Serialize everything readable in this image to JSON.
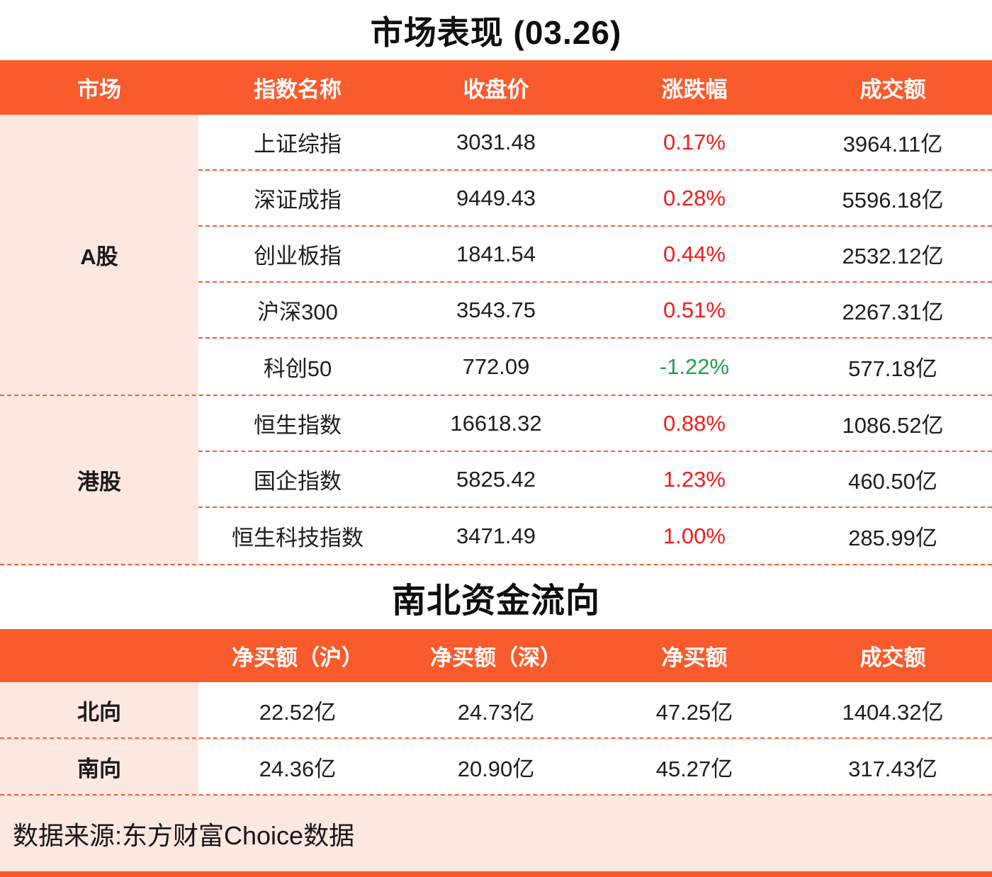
{
  "colors": {
    "accent": "#F95B2D",
    "pink": "#FDE8E1",
    "up": "#F21C1A",
    "down": "#1FA14A",
    "text": "#1E1E1E"
  },
  "footer": {
    "text": "数据来源:东方财富Choice数据"
  },
  "chart_data": [
    {
      "type": "table",
      "title": "市场表现 (03.26)",
      "columns": [
        "市场",
        "指数名称",
        "收盘价",
        "涨跌幅",
        "成交额"
      ],
      "row_groups": [
        {
          "market": "A股",
          "rows": [
            {
              "name": "上证综指",
              "close": "3031.48",
              "change": "0.17%",
              "change_dir": "up",
              "turnover": "3964.11亿"
            },
            {
              "name": "深证成指",
              "close": "9449.43",
              "change": "0.28%",
              "change_dir": "up",
              "turnover": "5596.18亿"
            },
            {
              "name": "创业板指",
              "close": "1841.54",
              "change": "0.44%",
              "change_dir": "up",
              "turnover": "2532.12亿"
            },
            {
              "name": "沪深300",
              "close": "3543.75",
              "change": "0.51%",
              "change_dir": "up",
              "turnover": "2267.31亿"
            },
            {
              "name": "科创50",
              "close": "772.09",
              "change": "-1.22%",
              "change_dir": "down",
              "turnover": "577.18亿"
            }
          ]
        },
        {
          "market": "港股",
          "rows": [
            {
              "name": "恒生指数",
              "close": "16618.32",
              "change": "0.88%",
              "change_dir": "up",
              "turnover": "1086.52亿"
            },
            {
              "name": "国企指数",
              "close": "5825.42",
              "change": "1.23%",
              "change_dir": "up",
              "turnover": "460.50亿"
            },
            {
              "name": "恒生科技指数",
              "close": "3471.49",
              "change": "1.00%",
              "change_dir": "up",
              "turnover": "285.99亿"
            }
          ]
        }
      ]
    },
    {
      "type": "table",
      "title": "南北资金流向",
      "columns": [
        "",
        "净买额（沪）",
        "净买额（深）",
        "净买额",
        "成交额"
      ],
      "rows": [
        {
          "label": "北向",
          "sh": "22.52亿",
          "sz": "24.73亿",
          "net": "47.25亿",
          "net_dir": "up",
          "turnover": "1404.32亿"
        },
        {
          "label": "南向",
          "sh": "24.36亿",
          "sz": "20.90亿",
          "net": "45.27亿",
          "net_dir": "up",
          "turnover": "317.43亿"
        }
      ]
    }
  ]
}
